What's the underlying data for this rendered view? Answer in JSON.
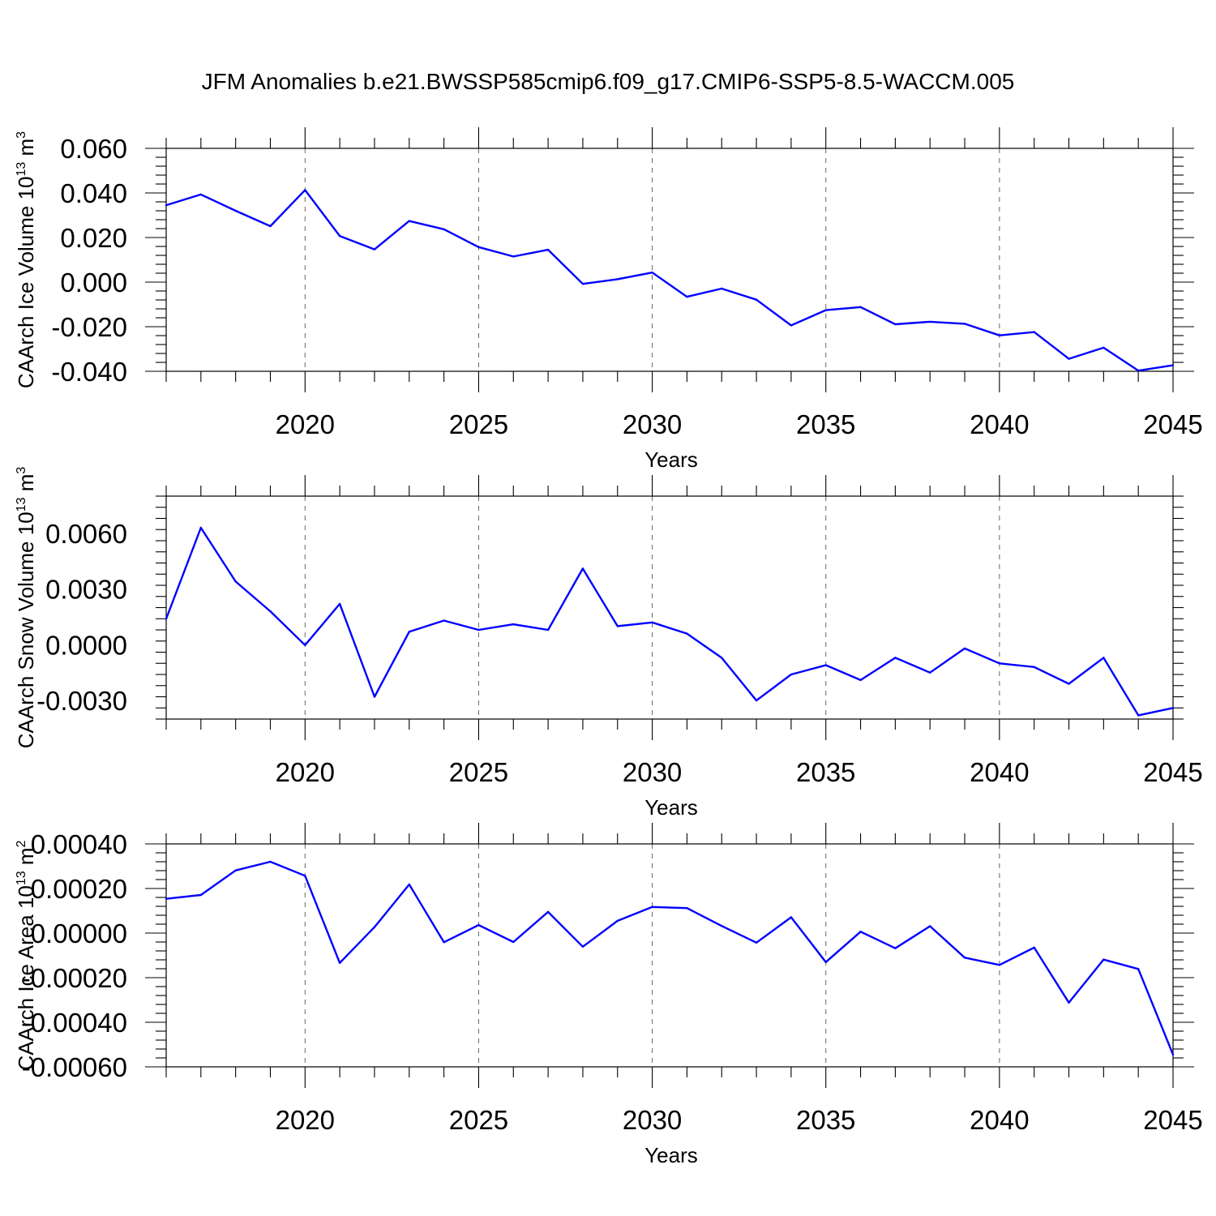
{
  "title": "JFM Anomalies b.e21.BWSSP585cmip6.f09_g17.CMIP6-SSP5-8.5-WACCM.005",
  "colors": {
    "line": "#0000ff",
    "frame": "#000000",
    "grid": "#666666"
  },
  "chart_data": [
    {
      "type": "line",
      "xlabel": "Years",
      "ylabel": "CAArch Ice Volume 10",
      "ylabel_exp": "13",
      "ylabel_unit": "m",
      "ylabel_unit_exp": "3",
      "xlim": [
        2016,
        2045
      ],
      "ylim": [
        -0.04,
        0.06
      ],
      "x_ticks": [
        2020,
        2025,
        2030,
        2035,
        2040,
        2045
      ],
      "y_ticks": [
        0.06,
        0.04,
        0.02,
        0.0,
        -0.02,
        -0.04
      ],
      "y_tick_labels": [
        "0.060",
        "0.040",
        "0.020",
        "0.000",
        "-0.020",
        "-0.040"
      ],
      "grid": "vertical dashed at major x ticks",
      "x": [
        2016,
        2017,
        2018,
        2019,
        2020,
        2021,
        2022,
        2023,
        2024,
        2025,
        2026,
        2027,
        2028,
        2029,
        2030,
        2031,
        2032,
        2033,
        2034,
        2035,
        2036,
        2037,
        2038,
        2039,
        2040,
        2041,
        2042,
        2043,
        2044,
        2045
      ],
      "values": [
        0.0345,
        0.0393,
        0.032,
        0.0251,
        0.0413,
        0.0207,
        0.0147,
        0.0274,
        0.0237,
        0.0157,
        0.0115,
        0.0145,
        -0.0008,
        0.0013,
        0.0043,
        -0.0066,
        -0.0029,
        -0.0079,
        -0.0194,
        -0.0126,
        -0.0112,
        -0.0189,
        -0.0178,
        -0.0187,
        -0.0239,
        -0.0224,
        -0.0344,
        -0.0294,
        -0.0397,
        -0.0373
      ]
    },
    {
      "type": "line",
      "xlabel": "Years",
      "ylabel": "CAArch Snow Volume 10",
      "ylabel_exp": "13",
      "ylabel_unit": "m",
      "ylabel_unit_exp": "3",
      "xlim": [
        2016,
        2045
      ],
      "ylim": [
        -0.004,
        0.008
      ],
      "x_ticks": [
        2020,
        2025,
        2030,
        2035,
        2040,
        2045
      ],
      "y_ticks": [
        0.006,
        0.003,
        0.0,
        -0.003
      ],
      "y_tick_labels": [
        "0.0060",
        "0.0030",
        "0.0000",
        "-0.0030"
      ],
      "grid": "vertical dashed at major x ticks",
      "x": [
        2016,
        2017,
        2018,
        2019,
        2020,
        2021,
        2022,
        2023,
        2024,
        2025,
        2026,
        2027,
        2028,
        2029,
        2030,
        2031,
        2032,
        2033,
        2034,
        2035,
        2036,
        2037,
        2038,
        2039,
        2040,
        2041,
        2042,
        2043,
        2044,
        2045
      ],
      "values": [
        0.0014,
        0.0063,
        0.0034,
        0.0018,
        -2e-05,
        0.0022,
        -0.0028,
        0.0007,
        0.0013,
        0.0008,
        0.0011,
        0.0008,
        0.0041,
        0.001,
        0.0012,
        0.0006,
        -0.0007,
        -0.003,
        -0.0016,
        -0.0011,
        -0.0019,
        -0.0007,
        -0.0015,
        -0.0002,
        -0.001,
        -0.0012,
        -0.0021,
        -0.0007,
        -0.0038,
        -0.0034
      ]
    },
    {
      "type": "line",
      "xlabel": "Years",
      "ylabel": "CAArch Ice Area 10",
      "ylabel_exp": "13",
      "ylabel_unit": "m",
      "ylabel_unit_exp": "2",
      "xlim": [
        2016,
        2045
      ],
      "ylim": [
        -0.0006,
        0.0004
      ],
      "x_ticks": [
        2020,
        2025,
        2030,
        2035,
        2040,
        2045
      ],
      "y_ticks": [
        0.0004,
        0.0002,
        0.0,
        -0.0002,
        -0.0004,
        -0.0006
      ],
      "y_tick_labels": [
        "0.00040",
        "0.00020",
        "0.00000",
        "-0.00020",
        "-0.00040",
        "-0.00060"
      ],
      "grid": "vertical dashed at major x ticks",
      "x": [
        2016,
        2017,
        2018,
        2019,
        2020,
        2021,
        2022,
        2023,
        2024,
        2025,
        2026,
        2027,
        2028,
        2029,
        2030,
        2031,
        2032,
        2033,
        2034,
        2035,
        2036,
        2037,
        2038,
        2039,
        2040,
        2041,
        2042,
        2043,
        2044,
        2045
      ],
      "values": [
        0.000154,
        0.000171,
        0.000281,
        0.00032,
        0.000257,
        -0.000134,
        2.7e-05,
        0.000218,
        -4.1e-05,
        3.6e-05,
        -4e-05,
        9.5e-05,
        -6.1e-05,
        5.5e-05,
        0.000117,
        0.000112,
        3.2e-05,
        -4.3e-05,
        7.1e-05,
        -0.00013,
        6e-06,
        -6.8e-05,
        3.1e-05,
        -0.00011,
        -0.000143,
        -6.5e-05,
        -0.000312,
        -0.000119,
        -0.000161,
        -0.000545
      ]
    }
  ]
}
